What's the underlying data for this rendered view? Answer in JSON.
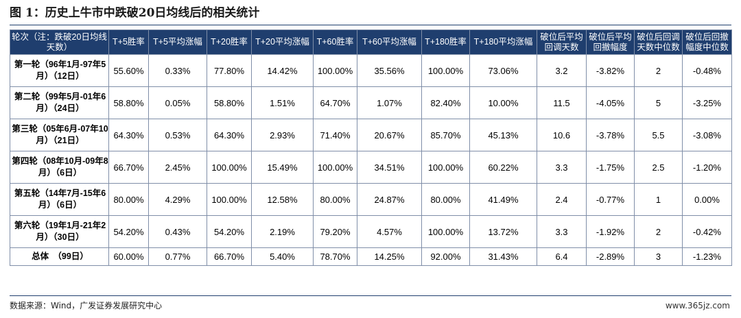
{
  "figure": {
    "title": "图 1：历史上牛市中跌破20日均线后的相关统计",
    "source": "数据来源：Wind，广发证券发展研究中心",
    "watermark": "www.365jz.com"
  },
  "table": {
    "headers": [
      "轮次（注：跌破20日均线天数）",
      "T+5胜率",
      "T+5平均涨幅",
      "T+20胜率",
      "T+20平均涨幅",
      "T+60胜率",
      "T+60平均涨幅",
      "T+180胜率",
      "T+180平均涨幅",
      "破位后平均回调天数",
      "破位后平均回撤幅度",
      "破位后回调天数中位数",
      "破位后回撤幅度中位数"
    ],
    "rows": [
      [
        "第一轮（96年1月-97年5月）（12日）",
        "55.60%",
        "0.33%",
        "77.80%",
        "14.42%",
        "100.00%",
        "35.56%",
        "100.00%",
        "73.06%",
        "3.2",
        "-3.82%",
        "2",
        "-0.48%"
      ],
      [
        "第二轮（99年5月-01年6月）（24日）",
        "58.80%",
        "0.05%",
        "58.80%",
        "1.51%",
        "64.70%",
        "1.07%",
        "82.40%",
        "10.00%",
        "11.5",
        "-4.05%",
        "5",
        "-3.25%"
      ],
      [
        "第三轮（05年6月-07年10月）（21日）",
        "64.30%",
        "0.53%",
        "64.30%",
        "2.93%",
        "71.40%",
        "20.67%",
        "85.70%",
        "45.13%",
        "10.6",
        "-3.78%",
        "5.5",
        "-3.08%"
      ],
      [
        "第四轮（08年10月-09年8月）（6日）",
        "66.70%",
        "2.45%",
        "100.00%",
        "15.49%",
        "100.00%",
        "34.51%",
        "100.00%",
        "60.22%",
        "3.3",
        "-1.75%",
        "2.5",
        "-1.20%"
      ],
      [
        "第五轮（14年7月-15年6月）（6日）",
        "80.00%",
        "4.29%",
        "100.00%",
        "12.58%",
        "80.00%",
        "24.87%",
        "80.00%",
        "41.49%",
        "2.4",
        "-0.77%",
        "1",
        "0.00%"
      ],
      [
        "第六轮（19年1月-21年2月）（30日）",
        "54.20%",
        "0.43%",
        "54.20%",
        "2.19%",
        "79.20%",
        "4.57%",
        "100.00%",
        "13.72%",
        "3.3",
        "-1.92%",
        "2",
        "-0.42%"
      ]
    ],
    "total": [
      "总体　（99日）",
      "60.00%",
      "0.77%",
      "66.70%",
      "5.40%",
      "78.70%",
      "14.25%",
      "92.00%",
      "31.43%",
      "6.4",
      "-2.89%",
      "3",
      "-1.23%"
    ]
  }
}
